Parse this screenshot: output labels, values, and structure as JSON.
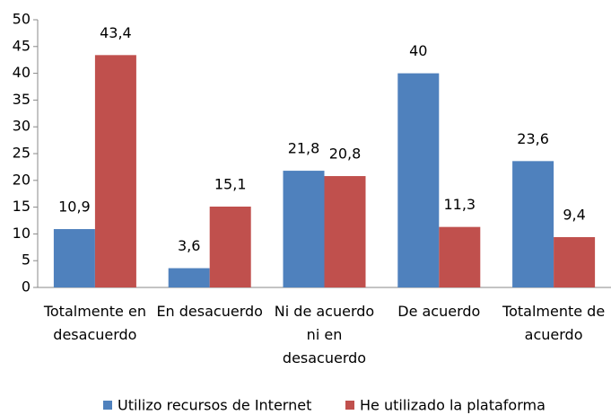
{
  "chart_data": {
    "type": "bar",
    "categories": [
      "Totalmente en desacuerdo",
      "En desacuerdo",
      "Ni de acuerdo ni en desacuerdo",
      "De acuerdo",
      "Totalmente de acuerdo"
    ],
    "series": [
      {
        "name": "Utilizo recursos de Internet",
        "color": "#4f81bd",
        "values": [
          10.9,
          3.6,
          21.8,
          40,
          23.6
        ],
        "value_labels": [
          "10,9",
          "3,6",
          "21,8",
          "40",
          "23,6"
        ]
      },
      {
        "name": "He utilizado la plataforma",
        "color": "#c0504d",
        "values": [
          43.4,
          15.1,
          20.8,
          11.3,
          9.4
        ],
        "value_labels": [
          "43,4",
          "15,1",
          "20,8",
          "11,3",
          "9,4"
        ]
      }
    ],
    "ylim": [
      0,
      50
    ],
    "yticks": [
      0,
      5,
      10,
      15,
      20,
      25,
      30,
      35,
      40,
      45,
      50
    ],
    "legend": "bottom"
  }
}
